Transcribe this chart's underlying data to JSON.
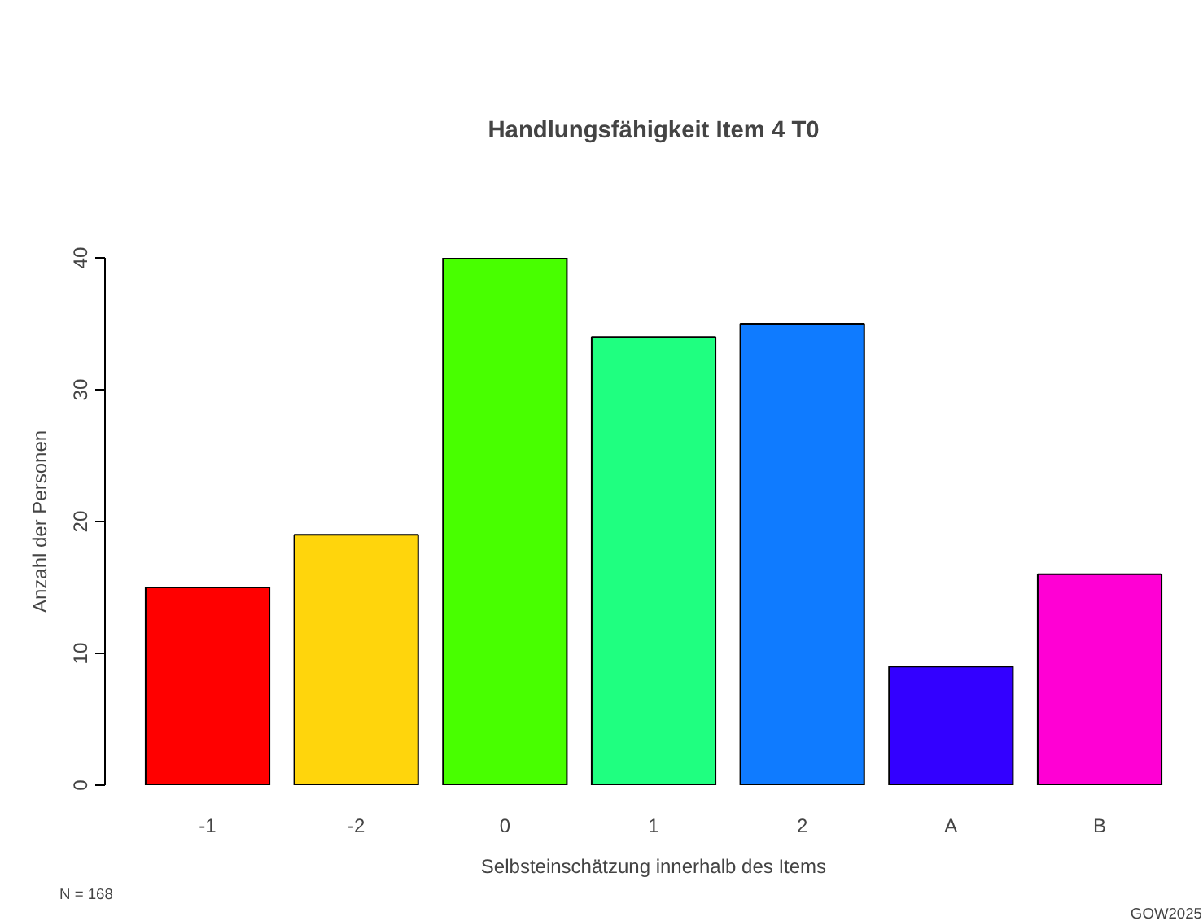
{
  "chart_data": {
    "type": "bar",
    "title": "Handlungsfähigkeit Item 4 T0",
    "xlabel": "Selbsteinschätzung innerhalb des Items",
    "ylabel": "Anzahl der Personen",
    "categories": [
      "-1",
      "-2",
      "0",
      "1",
      "2",
      "A",
      "B"
    ],
    "values": [
      15,
      19,
      40,
      34,
      35,
      9,
      16
    ],
    "colors": [
      "#ff0000",
      "#ffd50c",
      "#48ff00",
      "#1fff80",
      "#0f7bff",
      "#3300ff",
      "#ff00d4"
    ],
    "ylim": [
      0,
      40
    ],
    "yticks": [
      0,
      10,
      20,
      30,
      40
    ],
    "grid": false,
    "annotations": [
      "N = 168",
      "GOW2025"
    ]
  }
}
